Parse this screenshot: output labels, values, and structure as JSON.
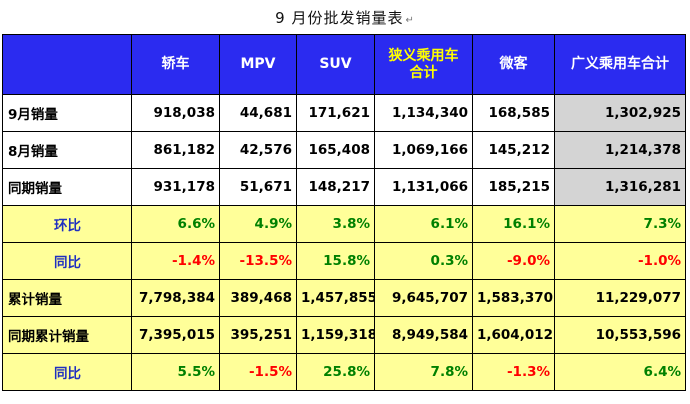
{
  "title": "9 月份批发销量表",
  "return_mark": "↵",
  "headers": [
    "",
    "轿车",
    "MPV",
    "SUV",
    "狭义乘用车\n合计",
    "微客",
    "广义乘用车合计"
  ],
  "rows": [
    {
      "label": "9月销量",
      "values": [
        "918,038",
        "44,681",
        "171,621",
        "1,134,340",
        "168,585",
        "1,302,925"
      ]
    },
    {
      "label": "8月销量",
      "values": [
        "861,182",
        "42,576",
        "165,408",
        "1,069,166",
        "145,212",
        "1,214,378"
      ]
    },
    {
      "label": "同期销量",
      "values": [
        "931,178",
        "51,671",
        "148,217",
        "1,131,066",
        "185,215",
        "1,316,281"
      ]
    },
    {
      "label": "环比",
      "values": [
        "6.6%",
        "4.9%",
        "3.8%",
        "6.1%",
        "16.1%",
        "7.3%"
      ]
    },
    {
      "label": "同比",
      "values": [
        "-1.4%",
        "-13.5%",
        "15.8%",
        "0.3%",
        "-9.0%",
        "-1.0%"
      ]
    },
    {
      "label": "累计销量",
      "values": [
        "7,798,384",
        "389,468",
        "1,457,855",
        "9,645,707",
        "1,583,370",
        "11,229,077"
      ]
    },
    {
      "label": "同期累计销量",
      "values": [
        "7,395,015",
        "395,251",
        "1,159,318",
        "8,949,584",
        "1,604,012",
        "10,553,596"
      ]
    },
    {
      "label": "同比",
      "values": [
        "5.5%",
        "-1.5%",
        "25.8%",
        "7.8%",
        "-1.3%",
        "6.4%"
      ]
    }
  ],
  "colors": {
    "header_bg": "#2b2bf0",
    "header_text": "#ffffff",
    "header_highlight": "#ffff00",
    "yellow_row": "#ffff99",
    "gray_cell": "#d4d4d4",
    "positive": "#008000",
    "negative": "#ff0000",
    "label_blue": "#2030c0"
  }
}
